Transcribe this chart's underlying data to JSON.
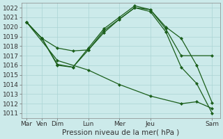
{
  "xlabel": "Pression niveau de la mer( hPa )",
  "bg_color": "#cceaea",
  "grid_color": "#aad4d4",
  "line_color": "#1a5e1a",
  "xtick_labels": [
    "Mar",
    "Ven",
    "Dim",
    "Lun",
    "Mer",
    "Jeu",
    "Sam"
  ],
  "xtick_positions": [
    0,
    1,
    2,
    4,
    6,
    8,
    12
  ],
  "xlim": [
    -0.3,
    12.5
  ],
  "ylim": [
    1010.5,
    1022.5
  ],
  "yticks": [
    1011,
    1012,
    1013,
    1014,
    1015,
    1016,
    1017,
    1018,
    1019,
    1020,
    1021,
    1022
  ],
  "lines": [
    {
      "x": [
        0,
        1,
        2,
        3,
        4,
        5,
        6,
        7,
        8,
        9,
        10,
        12
      ],
      "y": [
        1020.5,
        1018.8,
        1017.8,
        1017.5,
        1017.6,
        1019.6,
        1020.8,
        1022.0,
        1021.8,
        1019.8,
        1017.0,
        1017.0
      ]
    },
    {
      "x": [
        0,
        1,
        2,
        3,
        4,
        5,
        6,
        7,
        8,
        9,
        10,
        11,
        12
      ],
      "y": [
        1020.5,
        1018.8,
        1016.0,
        1015.8,
        1017.8,
        1019.8,
        1021.0,
        1022.2,
        1021.8,
        1020.0,
        1018.8,
        1016.0,
        1012.1
      ]
    },
    {
      "x": [
        0,
        1,
        2,
        3,
        4,
        5,
        6,
        7,
        8,
        9,
        10,
        11,
        12
      ],
      "y": [
        1020.5,
        1018.8,
        1016.1,
        1015.8,
        1017.6,
        1019.4,
        1020.8,
        1022.0,
        1021.6,
        1019.5,
        1015.8,
        1014.1,
        1011.0
      ]
    },
    {
      "x": [
        0,
        2,
        4,
        6,
        8,
        10,
        11,
        12
      ],
      "y": [
        1020.5,
        1016.5,
        1015.5,
        1014.0,
        1012.8,
        1012.0,
        1012.2,
        1011.5
      ]
    }
  ],
  "fontsize": 7.5,
  "tick_fontsize": 6.5
}
